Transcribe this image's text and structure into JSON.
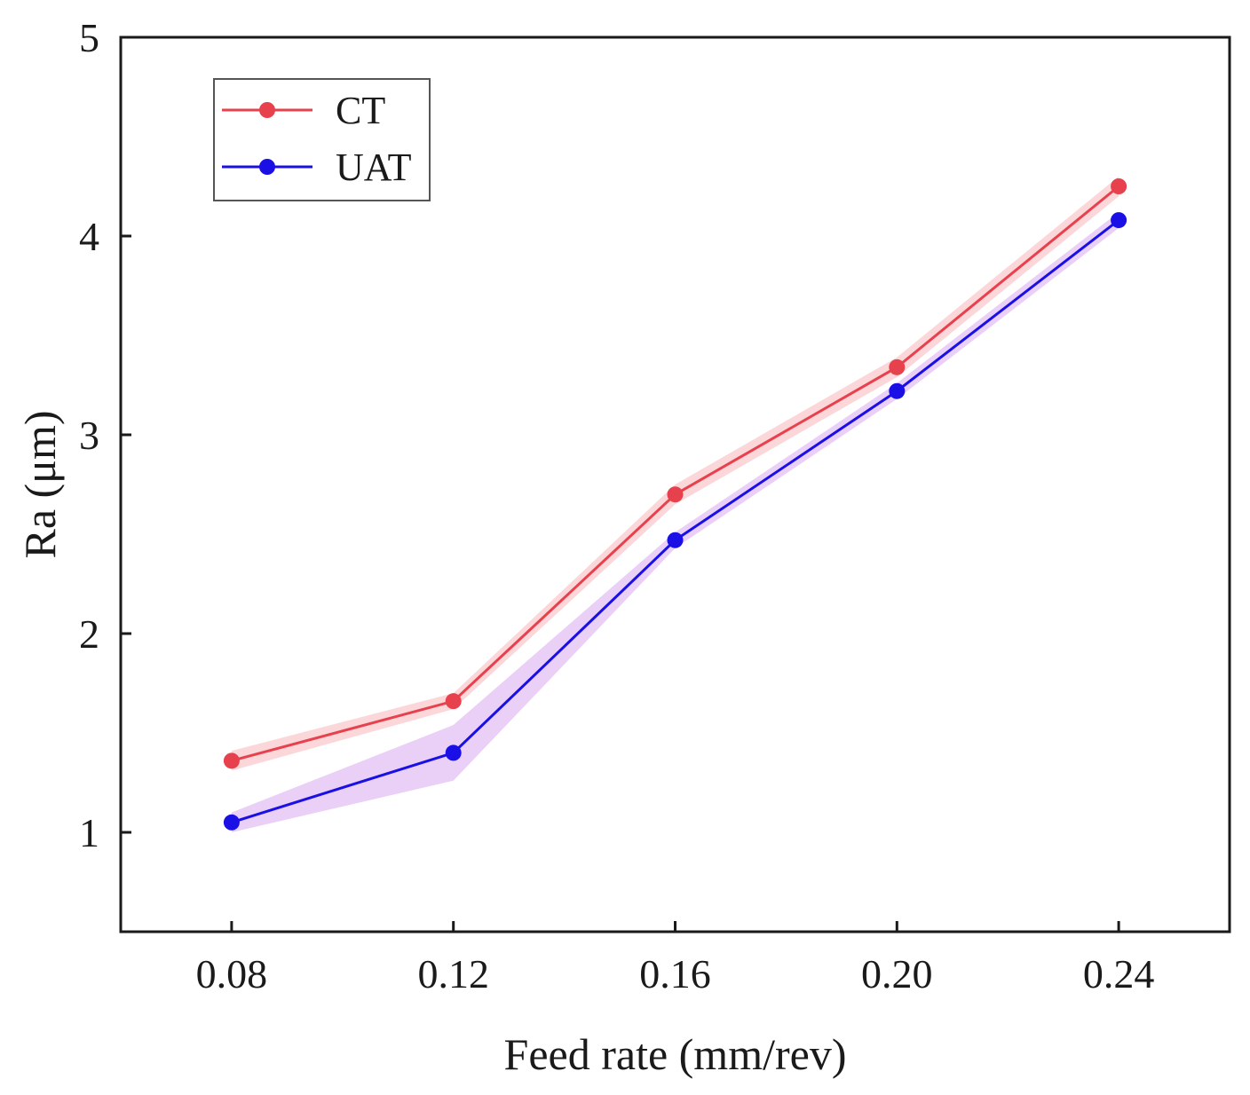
{
  "chart_data": {
    "type": "line",
    "title": "",
    "xlabel": "Feed rate  (mm/rev)",
    "ylabel": "Ra (μm)",
    "x": [
      0.08,
      0.12,
      0.16,
      0.2,
      0.24
    ],
    "x_tick_labels": [
      "0.08",
      "0.12",
      "0.16",
      "0.20",
      "0.24"
    ],
    "xlim": [
      0.06,
      0.26
    ],
    "ylim": [
      0.5,
      5.0
    ],
    "y_ticks": [
      1,
      2,
      3,
      4,
      5
    ],
    "y_tick_labels": [
      "1",
      "2",
      "3",
      "4",
      "5"
    ],
    "grid": false,
    "legend_position": "top-left",
    "series": [
      {
        "name": "CT",
        "color": "#e8414e",
        "band_color": "#f7b6bc",
        "values": [
          1.36,
          1.66,
          2.7,
          3.34,
          4.25
        ],
        "band_low": [
          1.31,
          1.62,
          2.65,
          3.29,
          4.2
        ],
        "band_high": [
          1.41,
          1.7,
          2.75,
          3.39,
          4.3
        ]
      },
      {
        "name": "UAT",
        "color": "#1a10e6",
        "band_color": "#d9a8ef",
        "values": [
          1.05,
          1.4,
          2.47,
          3.22,
          4.08
        ],
        "band_low": [
          1.0,
          1.26,
          2.43,
          3.18,
          4.04
        ],
        "band_high": [
          1.1,
          1.54,
          2.51,
          3.26,
          4.12
        ]
      }
    ]
  }
}
